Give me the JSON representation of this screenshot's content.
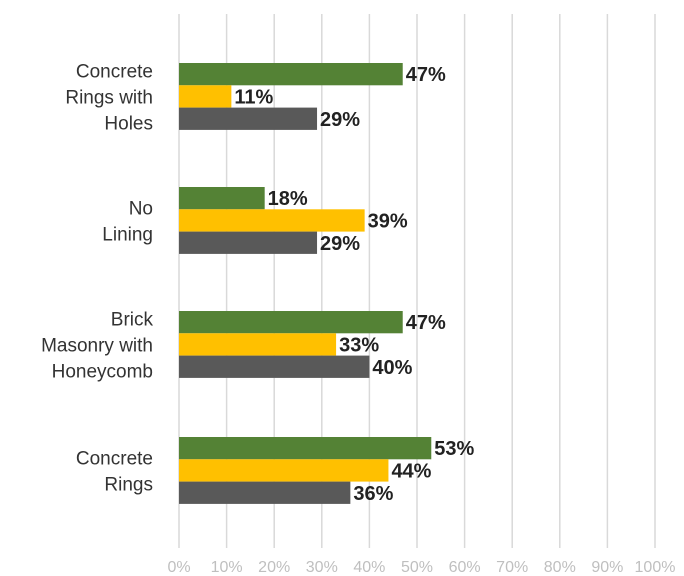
{
  "chart_data": {
    "type": "bar",
    "orientation": "horizontal",
    "categories": [
      [
        "Concrete",
        "Rings with",
        "Holes"
      ],
      [
        "No",
        "Lining"
      ],
      [
        "Brick",
        "Masonry with",
        "Honeycomb"
      ],
      [
        "Concrete",
        "Rings"
      ]
    ],
    "series": [
      {
        "values": [
          47,
          18,
          47,
          53
        ],
        "labels": [
          "47%",
          "18%",
          "47%",
          "53%"
        ],
        "color": "#548235"
      },
      {
        "values": [
          11,
          39,
          33,
          44
        ],
        "labels": [
          "11%",
          "39%",
          "33%",
          "44%"
        ],
        "color": "#ffc000"
      },
      {
        "values": [
          29,
          29,
          40,
          36
        ],
        "labels": [
          "29%",
          "29%",
          "40%",
          "36%"
        ],
        "color": "#595959"
      }
    ],
    "x_ticks": [
      "0%",
      "10%",
      "20%",
      "30%",
      "40%",
      "50%",
      "60%",
      "70%",
      "80%",
      "90%",
      "100%"
    ],
    "xlim": [
      0,
      100
    ],
    "gridlines": "vertical",
    "legend": "none"
  }
}
